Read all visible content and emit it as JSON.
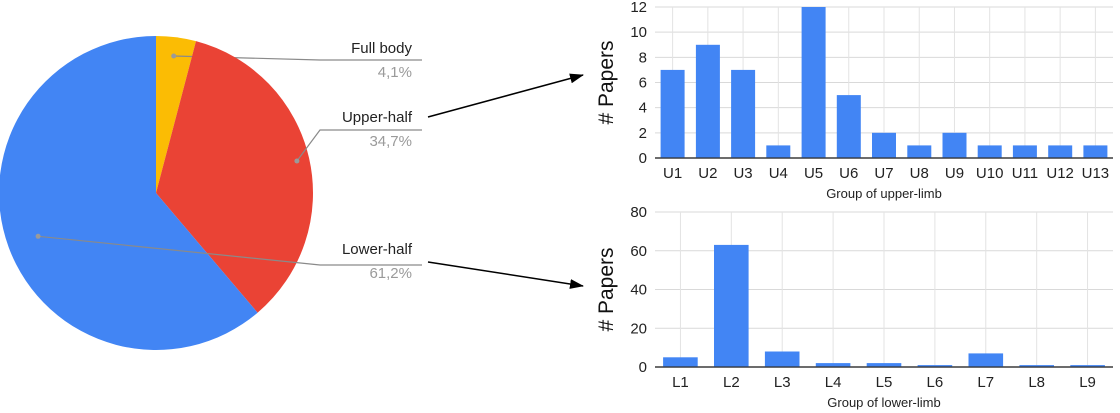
{
  "chart_data": [
    {
      "type": "pie",
      "slices": [
        {
          "label": "Full body",
          "value": 4.1,
          "display": "4,1%",
          "color": "#FBBC04"
        },
        {
          "label": "Upper-half",
          "value": 34.7,
          "display": "34,7%",
          "color": "#EA4335"
        },
        {
          "label": "Lower-half",
          "value": 61.2,
          "display": "61,2%",
          "color": "#4285F4"
        }
      ]
    },
    {
      "type": "bar",
      "categories": [
        "U1",
        "U2",
        "U3",
        "U4",
        "U5",
        "U6",
        "U7",
        "U8",
        "U9",
        "U10",
        "U11",
        "U12",
        "U13"
      ],
      "values": [
        7,
        9,
        7,
        1,
        12,
        5,
        2,
        1,
        2,
        1,
        1,
        1,
        1
      ],
      "ylabel": "# Papers",
      "xlabel": "Group of upper-limb",
      "ylim": [
        0,
        12
      ],
      "yticks": [
        0,
        2,
        4,
        6,
        8,
        10,
        12
      ],
      "color": "#4285F4",
      "grid": true
    },
    {
      "type": "bar",
      "categories": [
        "L1",
        "L2",
        "L3",
        "L4",
        "L5",
        "L6",
        "L7",
        "L8",
        "L9"
      ],
      "values": [
        5,
        63,
        8,
        2,
        2,
        1,
        7,
        1,
        1
      ],
      "ylabel": "# Papers",
      "xlabel": "Group of lower-limb",
      "ylim": [
        0,
        80
      ],
      "yticks": [
        0,
        20,
        40,
        60,
        80
      ],
      "color": "#4285F4",
      "grid": true
    }
  ]
}
